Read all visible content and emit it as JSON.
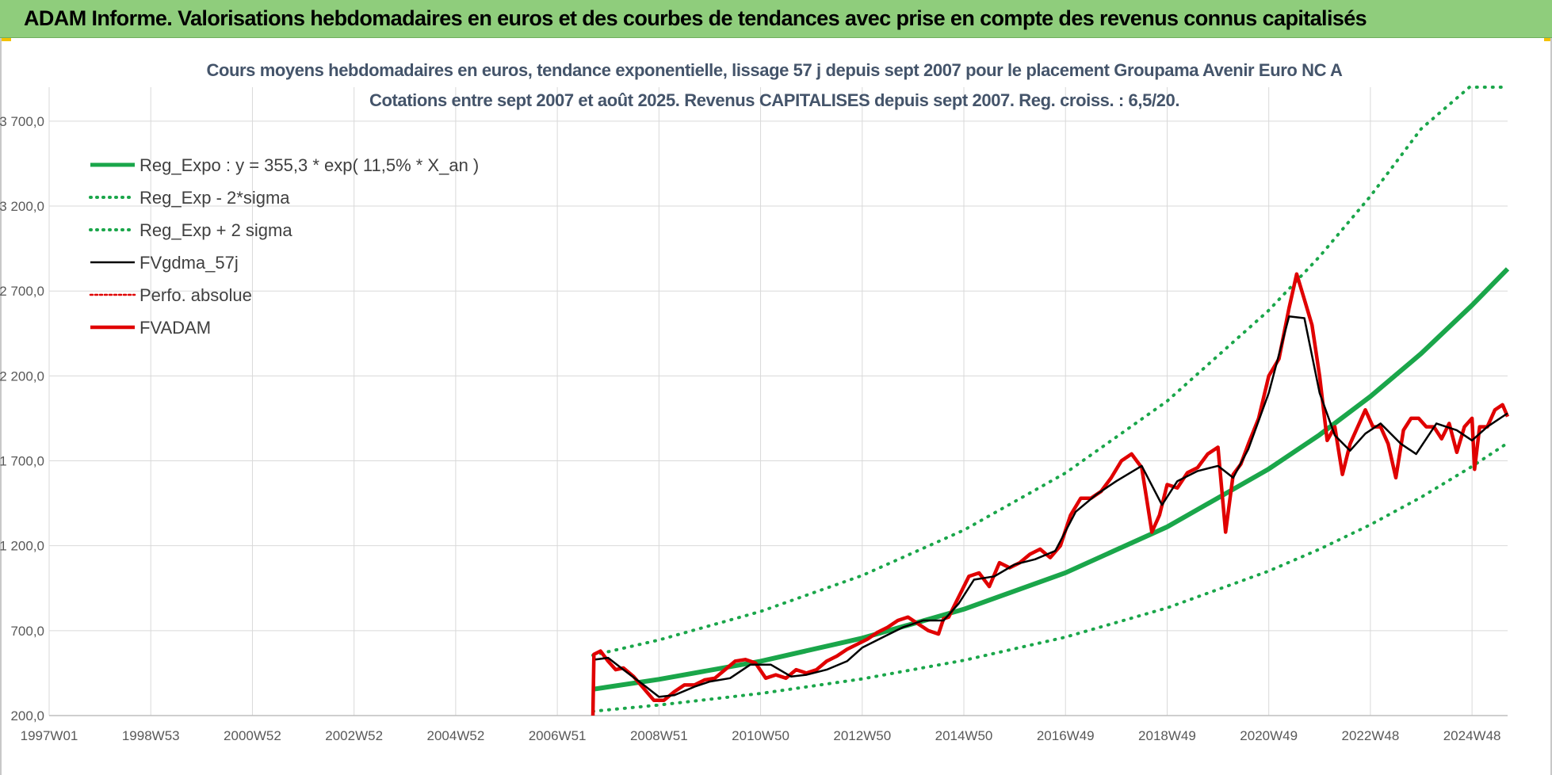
{
  "header": {
    "title": "ADAM Informe. Valorisations hebdomadaires en euros et des courbes de tendances avec prise en compte des revenus connus capitalisés"
  },
  "chart_data": {
    "type": "line",
    "title": "Cours moyens hebdomadaires en euros, tendance exponentielle, lissage 57 j depuis sept 2007 pour le placement Groupama Avenir Euro NC A",
    "subtitle": "Cotations entre sept 2007 et août 2025. Revenus CAPITALISES depuis sept 2007. Reg. croiss. : 6,5/20.",
    "xlabel": "",
    "ylabel": "",
    "xlim": [
      1997.0,
      2025.7
    ],
    "ylim": [
      200,
      3900
    ],
    "y_ticks": [
      200,
      700,
      1200,
      1700,
      2200,
      2700,
      3200,
      3700
    ],
    "y_tick_labels": [
      "200,0",
      "700,0",
      "1 200,0",
      "1 700,0",
      "2 200,0",
      "2 700,0",
      "3 200,0",
      "3 700,0"
    ],
    "x_ticks": [
      1997.0,
      1999.0,
      2001.0,
      2003.0,
      2005.0,
      2007.0,
      2009.0,
      2011.0,
      2013.0,
      2015.0,
      2017.0,
      2019.0,
      2021.0,
      2023.0,
      2025.0
    ],
    "x_tick_labels": [
      "1997W01",
      "1998W53",
      "2000W52",
      "2002W52",
      "2004W52",
      "2006W51",
      "2008W51",
      "2010W50",
      "2012W50",
      "2014W50",
      "2016W49",
      "2018W49",
      "2020W49",
      "2022W48",
      "2024W48"
    ],
    "grid": true,
    "legend_position": "top-left",
    "colors": {
      "reg_expo": "#1aa64a",
      "reg_band": "#1aa64a",
      "fvgdma": "#000000",
      "perfo": "#e00000",
      "fvadam": "#e00000"
    },
    "series": [
      {
        "name": "Reg_Expo : y = 355,3 * exp( 11,5% *  X_an )",
        "style": "solid-thick",
        "x": [
          2007.7,
          2009.0,
          2011.0,
          2013.0,
          2015.0,
          2017.0,
          2019.0,
          2021.0,
          2022.0,
          2023.0,
          2024.0,
          2025.0,
          2025.7
        ],
        "values": [
          355,
          413,
          520,
          656,
          826,
          1041,
          1311,
          1652,
          1853,
          2079,
          2332,
          2616,
          2830
        ]
      },
      {
        "name": "Reg_Exp - 2*sigma",
        "style": "dotted",
        "x": [
          2007.7,
          2009.0,
          2011.0,
          2013.0,
          2015.0,
          2017.0,
          2019.0,
          2021.0,
          2022.0,
          2023.0,
          2024.0,
          2025.0,
          2025.7
        ],
        "values": [
          225,
          262,
          330,
          416,
          525,
          662,
          834,
          1051,
          1180,
          1324,
          1486,
          1667,
          1805
        ]
      },
      {
        "name": "Reg_Exp + 2 sigma",
        "style": "dotted",
        "x": [
          2007.7,
          2009.0,
          2011.0,
          2013.0,
          2015.0,
          2017.0,
          2019.0,
          2021.0,
          2022.0,
          2023.0,
          2024.0,
          2024.95,
          2025.7
        ],
        "values": [
          555,
          645,
          813,
          1025,
          1292,
          1628,
          2052,
          2586,
          2903,
          3258,
          3655,
          3900,
          3900
        ]
      },
      {
        "name": "FVgdma_57j",
        "style": "solid",
        "x": [
          2007.75,
          2008.0,
          2008.3,
          2008.7,
          2009.0,
          2009.3,
          2009.7,
          2010.0,
          2010.4,
          2010.8,
          2011.2,
          2011.6,
          2011.9,
          2012.3,
          2012.7,
          2013.0,
          2013.4,
          2013.8,
          2014.2,
          2014.6,
          2014.9,
          2015.2,
          2015.6,
          2016.0,
          2016.4,
          2016.8,
          2017.2,
          2017.6,
          2018.0,
          2018.5,
          2018.9,
          2019.2,
          2019.6,
          2020.0,
          2020.3,
          2020.6,
          2021.0,
          2021.4,
          2021.7,
          2022.0,
          2022.3,
          2022.6,
          2022.9,
          2023.2,
          2023.6,
          2023.9,
          2024.3,
          2024.7,
          2025.0,
          2025.3,
          2025.7
        ],
        "values": [
          530,
          540,
          470,
          380,
          310,
          320,
          370,
          400,
          420,
          500,
          500,
          430,
          440,
          470,
          520,
          600,
          660,
          720,
          760,
          760,
          860,
          1000,
          1020,
          1090,
          1120,
          1170,
          1400,
          1500,
          1580,
          1670,
          1440,
          1580,
          1640,
          1670,
          1600,
          1770,
          2100,
          2550,
          2540,
          2100,
          1850,
          1760,
          1860,
          1920,
          1800,
          1740,
          1920,
          1880,
          1820,
          1900,
          1980
        ]
      },
      {
        "name": "Perfo. absolue",
        "style": "dotted",
        "x": [
          2007.75,
          2008.0,
          2008.3,
          2008.7,
          2009.0,
          2009.3,
          2009.7,
          2010.0,
          2010.4,
          2010.8,
          2011.2,
          2011.6,
          2011.9,
          2012.3,
          2012.7,
          2013.0,
          2013.4,
          2013.8,
          2014.2,
          2014.6,
          2014.9,
          2015.2,
          2015.6,
          2016.0,
          2016.4,
          2016.8,
          2017.2,
          2017.6,
          2018.0,
          2018.5,
          2018.9,
          2019.2,
          2019.6,
          2020.0,
          2020.3,
          2020.6,
          2021.0,
          2021.4,
          2021.7,
          2022.0,
          2022.3,
          2022.6,
          2022.9,
          2023.2,
          2023.6,
          2023.9,
          2024.3,
          2024.7,
          2025.0,
          2025.3,
          2025.7
        ],
        "values": [
          530,
          540,
          470,
          380,
          310,
          320,
          370,
          400,
          420,
          500,
          500,
          430,
          440,
          470,
          520,
          600,
          660,
          720,
          760,
          760,
          860,
          1000,
          1020,
          1090,
          1120,
          1170,
          1400,
          1500,
          1580,
          1670,
          1440,
          1580,
          1640,
          1670,
          1600,
          1770,
          2100,
          2550,
          2540,
          2100,
          1850,
          1760,
          1860,
          1920,
          1800,
          1740,
          1920,
          1880,
          1820,
          1900,
          1980
        ]
      },
      {
        "name": "FVADAM",
        "style": "solid-thick",
        "x": [
          2007.7,
          2007.72,
          2007.85,
          2008.0,
          2008.15,
          2008.3,
          2008.5,
          2008.7,
          2008.9,
          2009.1,
          2009.3,
          2009.5,
          2009.7,
          2009.9,
          2010.1,
          2010.3,
          2010.5,
          2010.7,
          2010.9,
          2011.1,
          2011.3,
          2011.5,
          2011.7,
          2011.9,
          2012.1,
          2012.3,
          2012.5,
          2012.7,
          2012.9,
          2013.1,
          2013.3,
          2013.5,
          2013.7,
          2013.9,
          2014.1,
          2014.3,
          2014.5,
          2014.6,
          2014.7,
          2014.9,
          2015.1,
          2015.3,
          2015.5,
          2015.7,
          2015.9,
          2016.1,
          2016.3,
          2016.5,
          2016.7,
          2016.9,
          2017.1,
          2017.3,
          2017.5,
          2017.7,
          2017.9,
          2018.1,
          2018.3,
          2018.5,
          2018.7,
          2018.85,
          2019.0,
          2019.2,
          2019.4,
          2019.6,
          2019.8,
          2020.0,
          2020.15,
          2020.3,
          2020.45,
          2020.6,
          2020.8,
          2021.0,
          2021.2,
          2021.4,
          2021.55,
          2021.7,
          2021.85,
          2022.0,
          2022.15,
          2022.3,
          2022.45,
          2022.6,
          2022.75,
          2022.9,
          2023.05,
          2023.2,
          2023.35,
          2023.5,
          2023.65,
          2023.8,
          2023.95,
          2024.1,
          2024.25,
          2024.4,
          2024.55,
          2024.7,
          2024.85,
          2025.0,
          2025.05,
          2025.15,
          2025.3,
          2025.45,
          2025.6,
          2025.7
        ],
        "values": [
          200,
          560,
          580,
          520,
          470,
          480,
          430,
          360,
          290,
          290,
          340,
          380,
          380,
          410,
          420,
          470,
          520,
          530,
          510,
          420,
          440,
          420,
          470,
          450,
          470,
          520,
          550,
          590,
          620,
          650,
          690,
          720,
          760,
          780,
          740,
          700,
          680,
          770,
          780,
          900,
          1020,
          1040,
          960,
          1100,
          1070,
          1100,
          1150,
          1180,
          1130,
          1200,
          1380,
          1480,
          1480,
          1520,
          1600,
          1700,
          1740,
          1660,
          1280,
          1380,
          1560,
          1540,
          1630,
          1660,
          1740,
          1780,
          1280,
          1620,
          1680,
          1800,
          1950,
          2200,
          2300,
          2600,
          2800,
          2650,
          2500,
          2200,
          1820,
          1900,
          1620,
          1800,
          1900,
          2000,
          1900,
          1900,
          1800,
          1600,
          1880,
          1950,
          1950,
          1900,
          1900,
          1830,
          1920,
          1750,
          1900,
          1950,
          1650,
          1900,
          1900,
          2000,
          2030,
          1960
        ]
      }
    ]
  }
}
